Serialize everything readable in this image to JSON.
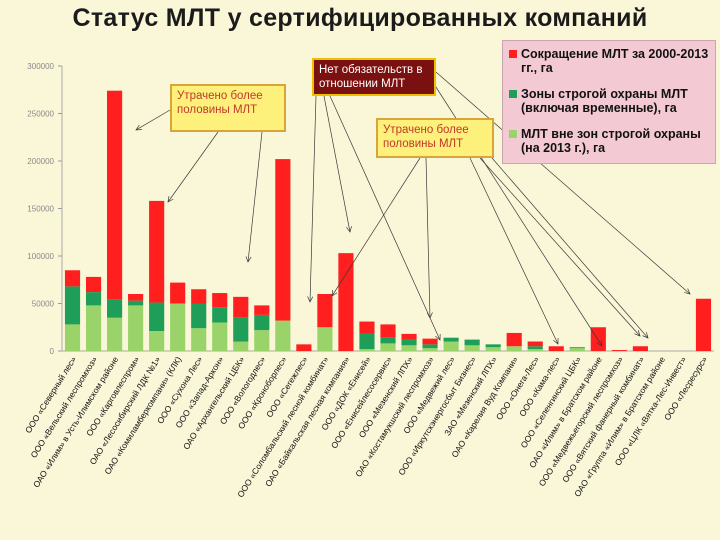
{
  "title": "Статус МЛТ у сертифицированных компаний",
  "colors": {
    "background": "#faf6d8",
    "reduction": "#ff1f1f",
    "strict": "#1f9e5a",
    "outside": "#9ad36a",
    "legend_bg": "#f3c9d3"
  },
  "legend": [
    {
      "label": "Сокращение МЛТ за 2000-2013 гг., га",
      "color": "#ff1f1f"
    },
    {
      "label": "Зоны строгой охраны МЛТ (включая временные), га",
      "color": "#1f9e5a"
    },
    {
      "label": "МЛТ вне зон строгой охраны (на 2013 г.), га",
      "color": "#9ad36a"
    }
  ],
  "callouts": {
    "lost_half_1": "Утрачено более половины МЛТ",
    "no_obligations": "Нет обязательств в отношении МЛТ",
    "lost_half_2": "Утрачено более половины МЛТ"
  },
  "chart_data": {
    "type": "bar",
    "stacked": true,
    "title": "Статус МЛТ у сертифицированных компаний",
    "ylim": [
      0,
      300000
    ],
    "yticks": [
      0,
      50000,
      100000,
      150000,
      200000,
      250000,
      300000
    ],
    "ytick_labels": [
      "0",
      "50000",
      "100000",
      "150000",
      "200000",
      "250000",
      "300000"
    ],
    "categories": [
      "ООО «Северный лес»",
      "ООО «Вельский леспромхоз»",
      "ОАО «Илим» в Усть-Илимском районе",
      "ООО «Карговлеспром»",
      "ОАО «Лесосибирский ЛДК №1»",
      "ОАО «Комиламберкомпани» (КЛК)",
      "ООО «Сухона Лес»",
      "ООО «Запад-Аркон»",
      "ОАО «Архангельский ЦБК»",
      "ООО «Вологодлес»",
      "ООО «Кроноборлес»",
      "ООО «Сегежлес»",
      "ООО «Соломбальский лесной комбинат»",
      "ОАО «Байкальская лесная компания»",
      "ООО «ДОК «Енисей»",
      "ООО «Енисейлесосервис»",
      "ООО «Мезенский ЛПХ»",
      "ОАО «Костамукшский леспромхоз»",
      "ООО «Медвежий лес»",
      "ООО «Иркутскэнергосбыт Бизнес»",
      "ЗАО «Мезенский ЛПХ»",
      "ОАО «Карелия Вуд Компани»",
      "ООО «Онега-Лес»",
      "ООО «Кама-лес»",
      "ООО «Селенгинский ЦБК»",
      "ОАО «Илим» в Братском районе",
      "ООО «Медвежьегорский леспромхоз»",
      "ООО «Вятский фанерный комбинат»",
      "ОАО «Группа «Илим» в Братском районе",
      "ООО «ЦЛК «Вятка-Лес-Инвест»",
      "ООО «Лесресурс»"
    ],
    "series": [
      {
        "name": "МЛТ вне зон строгой охраны (на 2013 г.), га",
        "color": "#9ad36a",
        "values": [
          28000,
          48000,
          35000,
          48000,
          21000,
          50000,
          24000,
          30000,
          10000,
          22000,
          32000,
          0,
          25000,
          0,
          2000,
          8000,
          6000,
          3000,
          10000,
          6000,
          4000,
          5000,
          2000,
          0,
          3000,
          0,
          0,
          0,
          0,
          0,
          0
        ]
      },
      {
        "name": "Зоны строгой охраны МЛТ (включая временные), га",
        "color": "#1f9e5a",
        "values": [
          40000,
          14000,
          19000,
          5000,
          30000,
          0,
          26000,
          16000,
          25000,
          16000,
          0,
          0,
          0,
          0,
          16000,
          6000,
          6000,
          4000,
          4000,
          6000,
          3000,
          0,
          3000,
          0,
          1000,
          0,
          0,
          0,
          0,
          0,
          0
        ]
      },
      {
        "name": "Сокращение МЛТ за 2000-2013 гг., га",
        "color": "#ff1f1f",
        "values": [
          17000,
          16000,
          220000,
          7000,
          107000,
          22000,
          15000,
          15000,
          22000,
          10000,
          170000,
          7000,
          35000,
          103000,
          13000,
          14000,
          6000,
          6000,
          0,
          0,
          0,
          14000,
          5000,
          5000,
          0,
          25000,
          1000,
          5000,
          0,
          0,
          55000
        ]
      }
    ]
  }
}
